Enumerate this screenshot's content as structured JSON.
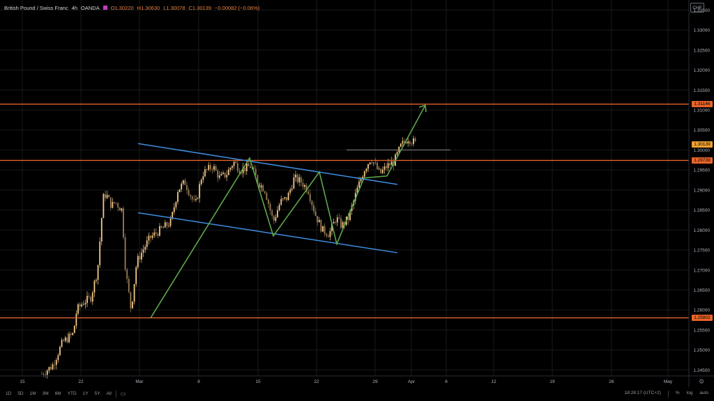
{
  "legend": {
    "symbol": "British Pound / Swiss Franc",
    "interval": "4h",
    "exchange": "OANDA",
    "open": "O1.30220",
    "high": "H1.30630",
    "low": "L1.30078",
    "close": "C1.30139",
    "change": "−0.00082 (−0.06%)"
  },
  "currency_tag": "CHF",
  "price_tags": {
    "resistance_upper": "1.31146",
    "current": "1.30139",
    "resistance_mid": "1.29739",
    "support": "1.25802"
  },
  "bottom_bar": {
    "timeframes": [
      "1D",
      "5D",
      "1M",
      "3M",
      "6M",
      "YTD",
      "1Y",
      "5Y",
      "All"
    ],
    "clock": "18:28:17 (UTC+2)",
    "percent": "%",
    "log": "log",
    "auto": "auto"
  },
  "colors": {
    "background": "#000000",
    "bull": "#f5c98a",
    "bear": "#9a7e56",
    "horizontal_line": "#e8642a",
    "channel": "#3d8ee0",
    "zigzag": "#5fa84a",
    "grid": "#1a1a1a",
    "axis_text": "#b2b5be"
  },
  "chart_data": {
    "type": "line",
    "instrument": "British Pound / Swiss Franc",
    "interval": "4h",
    "y_ticks": [
      "1.33500",
      "1.33000",
      "1.32500",
      "1.32000",
      "1.31500",
      "1.31000",
      "1.30500",
      "1.30000",
      "1.29500",
      "1.29000",
      "1.28500",
      "1.28000",
      "1.27500",
      "1.27000",
      "1.26500",
      "1.26000",
      "1.25500",
      "1.25000",
      "1.24500"
    ],
    "x_ticks": [
      "15",
      "22",
      "Mar",
      "8",
      "15",
      "22",
      "29",
      "Apr",
      "6",
      "12",
      "19",
      "26",
      "May"
    ],
    "ylim": [
      1.2435,
      1.3375
    ],
    "price_path": {
      "x": [
        60,
        75,
        90,
        105,
        110,
        120,
        130,
        140,
        148,
        152,
        160,
        165,
        175,
        180,
        188,
        196,
        205,
        215,
        230,
        245,
        255,
        265,
        280,
        290,
        305,
        315,
        325,
        335,
        345,
        360,
        370,
        380,
        392,
        402,
        412,
        422,
        432,
        442,
        452,
        462,
        472,
        482,
        490,
        500,
        512,
        522,
        532,
        545,
        555,
        565,
        575,
        585,
        598
      ],
      "y": [
        1.244,
        1.246,
        1.252,
        1.254,
        1.26,
        1.262,
        1.263,
        1.27,
        1.288,
        1.289,
        1.286,
        1.287,
        1.285,
        1.27,
        1.26,
        1.272,
        1.275,
        1.278,
        1.28,
        1.282,
        1.29,
        1.292,
        1.286,
        1.294,
        1.296,
        1.293,
        1.294,
        1.297,
        1.295,
        1.296,
        1.292,
        1.29,
        1.282,
        1.287,
        1.288,
        1.293,
        1.292,
        1.29,
        1.284,
        1.28,
        1.279,
        1.283,
        1.281,
        1.283,
        1.29,
        1.295,
        1.298,
        1.294,
        1.296,
        1.297,
        1.301,
        1.303,
        1.3014
      ]
    },
    "horizontal_levels": [
      1.31146,
      1.29739,
      1.25802
    ],
    "current_price": 1.30139
  }
}
